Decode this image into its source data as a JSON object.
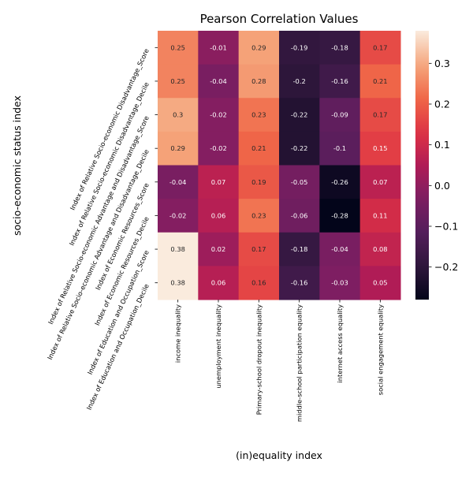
{
  "chart_data": {
    "type": "heatmap",
    "title": "Pearson Correlation Values",
    "xlabel": "(in)equality index",
    "ylabel": "socio-economic status index",
    "x_categories": [
      "income inequality",
      "unemployment inequality",
      "Primary-school dropout inequality",
      "middle-school participation equality",
      "internet access equality",
      "social engagement equality"
    ],
    "y_categories": [
      "Index of Relative Socio-economic Disadvantage_Score",
      "Index of Relative Socio-economic Disadvantage_Decile",
      "Index of Relative Socio-economic Advantage and Disadvantage_Score",
      "Index of Relative Socio-economic Advantage and Disadvantage_Decile",
      "Index of Economic Resources_Score",
      "Index of Economic Resources_Decile",
      "Index of Education and Occupation_Score",
      "Index of Education and Occupation_Decile"
    ],
    "values": [
      [
        0.25,
        -0.01,
        0.29,
        -0.19,
        -0.18,
        0.17
      ],
      [
        0.25,
        -0.04,
        0.28,
        -0.2,
        -0.16,
        0.21
      ],
      [
        0.3,
        -0.02,
        0.23,
        -0.22,
        -0.09,
        0.17
      ],
      [
        0.29,
        -0.02,
        0.21,
        -0.22,
        -0.1,
        0.15
      ],
      [
        -0.04,
        0.07,
        0.19,
        -0.05,
        -0.26,
        0.07
      ],
      [
        -0.02,
        0.06,
        0.23,
        -0.06,
        -0.28,
        0.11
      ],
      [
        0.38,
        0.02,
        0.17,
        -0.18,
        -0.04,
        0.08
      ],
      [
        0.38,
        0.06,
        0.16,
        -0.16,
        -0.03,
        0.05
      ]
    ],
    "value_labels": [
      [
        "0.25",
        "-0.01",
        "0.29",
        "-0.19",
        "-0.18",
        "0.17"
      ],
      [
        "0.25",
        "-0.04",
        "0.28",
        "-0.2",
        "-0.16",
        "0.21"
      ],
      [
        "0.3",
        "-0.02",
        "0.23",
        "-0.22",
        "-0.09",
        "0.17"
      ],
      [
        "0.29",
        "-0.02",
        "0.21",
        "-0.22",
        "-0.1",
        "0.15"
      ],
      [
        "-0.04",
        "0.07",
        "0.19",
        "-0.05",
        "-0.26",
        "0.07"
      ],
      [
        "-0.02",
        "0.06",
        "0.23",
        "-0.06",
        "-0.28",
        "0.11"
      ],
      [
        "0.38",
        "0.02",
        "0.17",
        "-0.18",
        "-0.04",
        "0.08"
      ],
      [
        "0.38",
        "0.06",
        "0.16",
        "-0.16",
        "-0.03",
        "0.05"
      ]
    ],
    "colormap": "rocket",
    "value_range": [
      -0.28,
      0.38
    ],
    "colorbar": {
      "placement": "right",
      "ticks": [
        -0.2,
        -0.1,
        0.0,
        0.1,
        0.2,
        0.3
      ],
      "tick_labels": [
        "−0.2",
        "−0.1",
        "0.0",
        "0.1",
        "0.2",
        "0.3"
      ]
    },
    "grid": false
  }
}
